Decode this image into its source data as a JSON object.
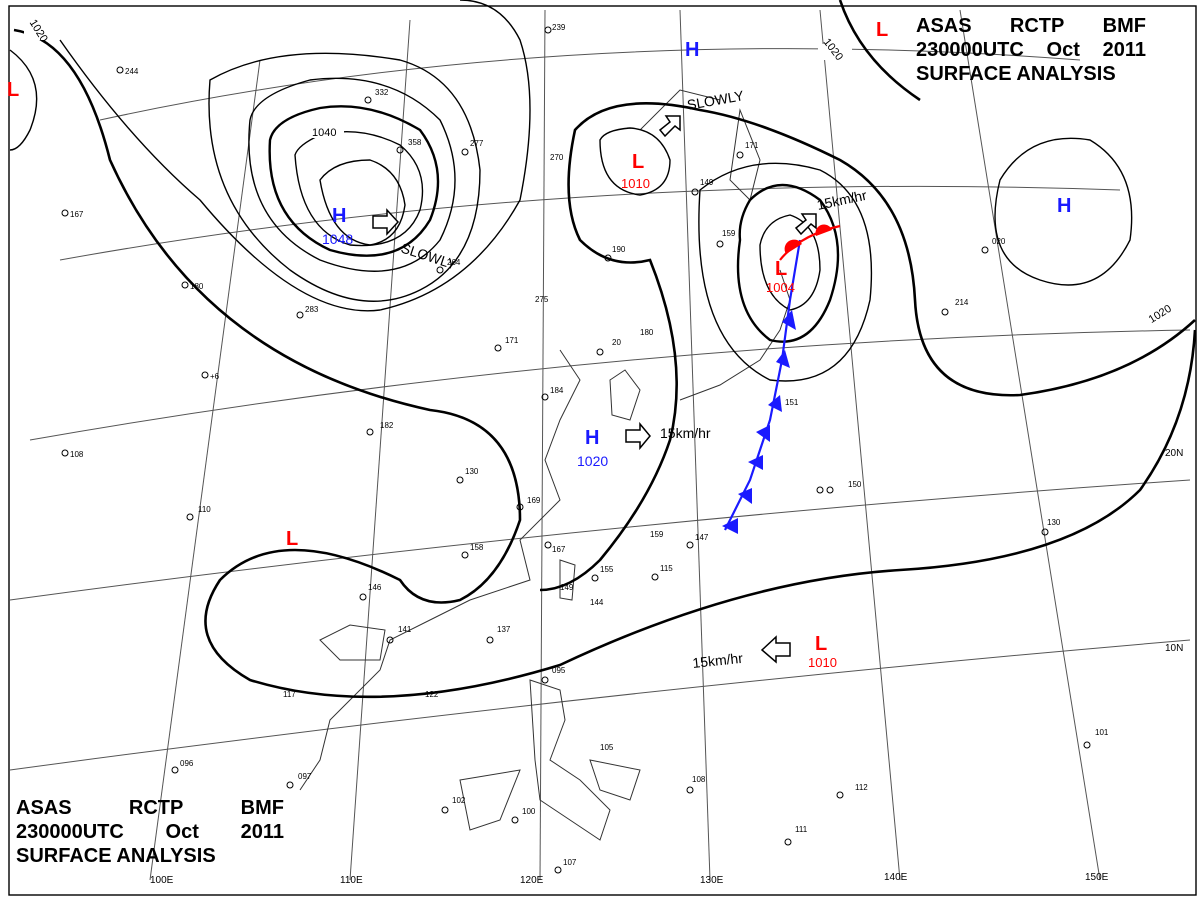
{
  "header": {
    "words": [
      "ASAS",
      "RCTP",
      "BMF"
    ],
    "time": "230000UTC",
    "month": "Oct",
    "year": "2011",
    "title": "SURFACE ANALYSIS"
  },
  "lon_labels": [
    "100E",
    "110E",
    "120E",
    "130E",
    "140E",
    "150E"
  ],
  "lat_labels": [
    "20N",
    "10N"
  ],
  "isobar_labels": [
    "1020",
    "1040",
    "1020",
    "1020"
  ],
  "pressure_centers": [
    {
      "type": "H",
      "value": "1048"
    },
    {
      "type": "H",
      "value": "1020"
    },
    {
      "type": "H",
      "value": ""
    },
    {
      "type": "H",
      "value": ""
    },
    {
      "type": "L",
      "value": "1010"
    },
    {
      "type": "L",
      "value": "1004"
    },
    {
      "type": "L",
      "value": "1010"
    },
    {
      "type": "L",
      "value": ""
    },
    {
      "type": "L",
      "value": ""
    },
    {
      "type": "L",
      "value": ""
    }
  ],
  "movements": [
    "SLOWLY",
    "SLOWLY",
    "15km/hr",
    "15km/hr",
    "15km/hr"
  ],
  "colors": {
    "high": "#1a1aff",
    "low": "#ff0000",
    "isobar": "#000000",
    "grid": "#555555",
    "coast": "#333333",
    "cold_front": "#1a1aff",
    "warm_front": "#ff0000"
  }
}
